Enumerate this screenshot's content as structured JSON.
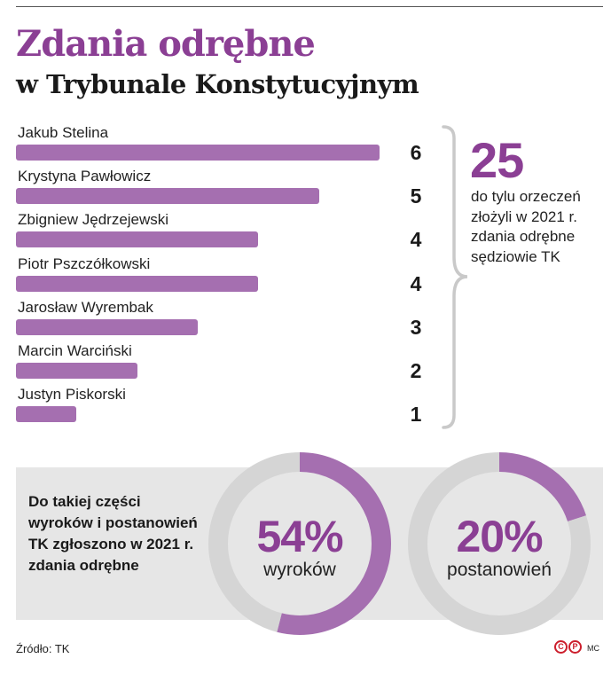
{
  "header": {
    "title": "Zdania odrębne",
    "subtitle": "w Trybunale Konstytucyjnym"
  },
  "chart_data": [
    {
      "type": "bar",
      "orientation": "horizontal",
      "categories": [
        "Jakub Stelina",
        "Krystyna Pawłowicz",
        "Zbigniew Jędrzejewski",
        "Piotr Pszczółkowski",
        "Jarosław Wyrembak",
        "Marcin Warciński",
        "Justyn Piskorski"
      ],
      "values": [
        6,
        5,
        4,
        4,
        3,
        2,
        1
      ],
      "value_labels": [
        "6",
        "5",
        "4",
        "4",
        "3",
        "2",
        "1"
      ],
      "xlim": [
        0,
        6
      ],
      "grid": false,
      "bar_color": "#a56fb0"
    },
    {
      "type": "pie",
      "donut": true,
      "values": [
        54,
        46
      ],
      "percent_label": "54%",
      "center_label": "wyroków",
      "colors": [
        "#a56fb0",
        "#d5d5d5"
      ]
    },
    {
      "type": "pie",
      "donut": true,
      "values": [
        20,
        80
      ],
      "percent_label": "20%",
      "center_label": "postanowień",
      "colors": [
        "#a56fb0",
        "#d5d5d5"
      ]
    }
  ],
  "summary": {
    "number": "25",
    "caption": "do tylu orzeczeń złożyli w 2021 r. zdania odrębne sędziowie TK"
  },
  "panel": {
    "text": "Do takiej części wyroków i postanowień TK zgłoszono w 2021 r. zdania odrębne"
  },
  "footer": {
    "source": "Źródło: TK",
    "copyright_c": "C",
    "copyright_p": "P",
    "author": "MC"
  },
  "colors": {
    "accent": "#8b3f94",
    "bar": "#a56fb0",
    "ring_gray": "#d5d5d5",
    "panel": "#e6e6e6"
  }
}
